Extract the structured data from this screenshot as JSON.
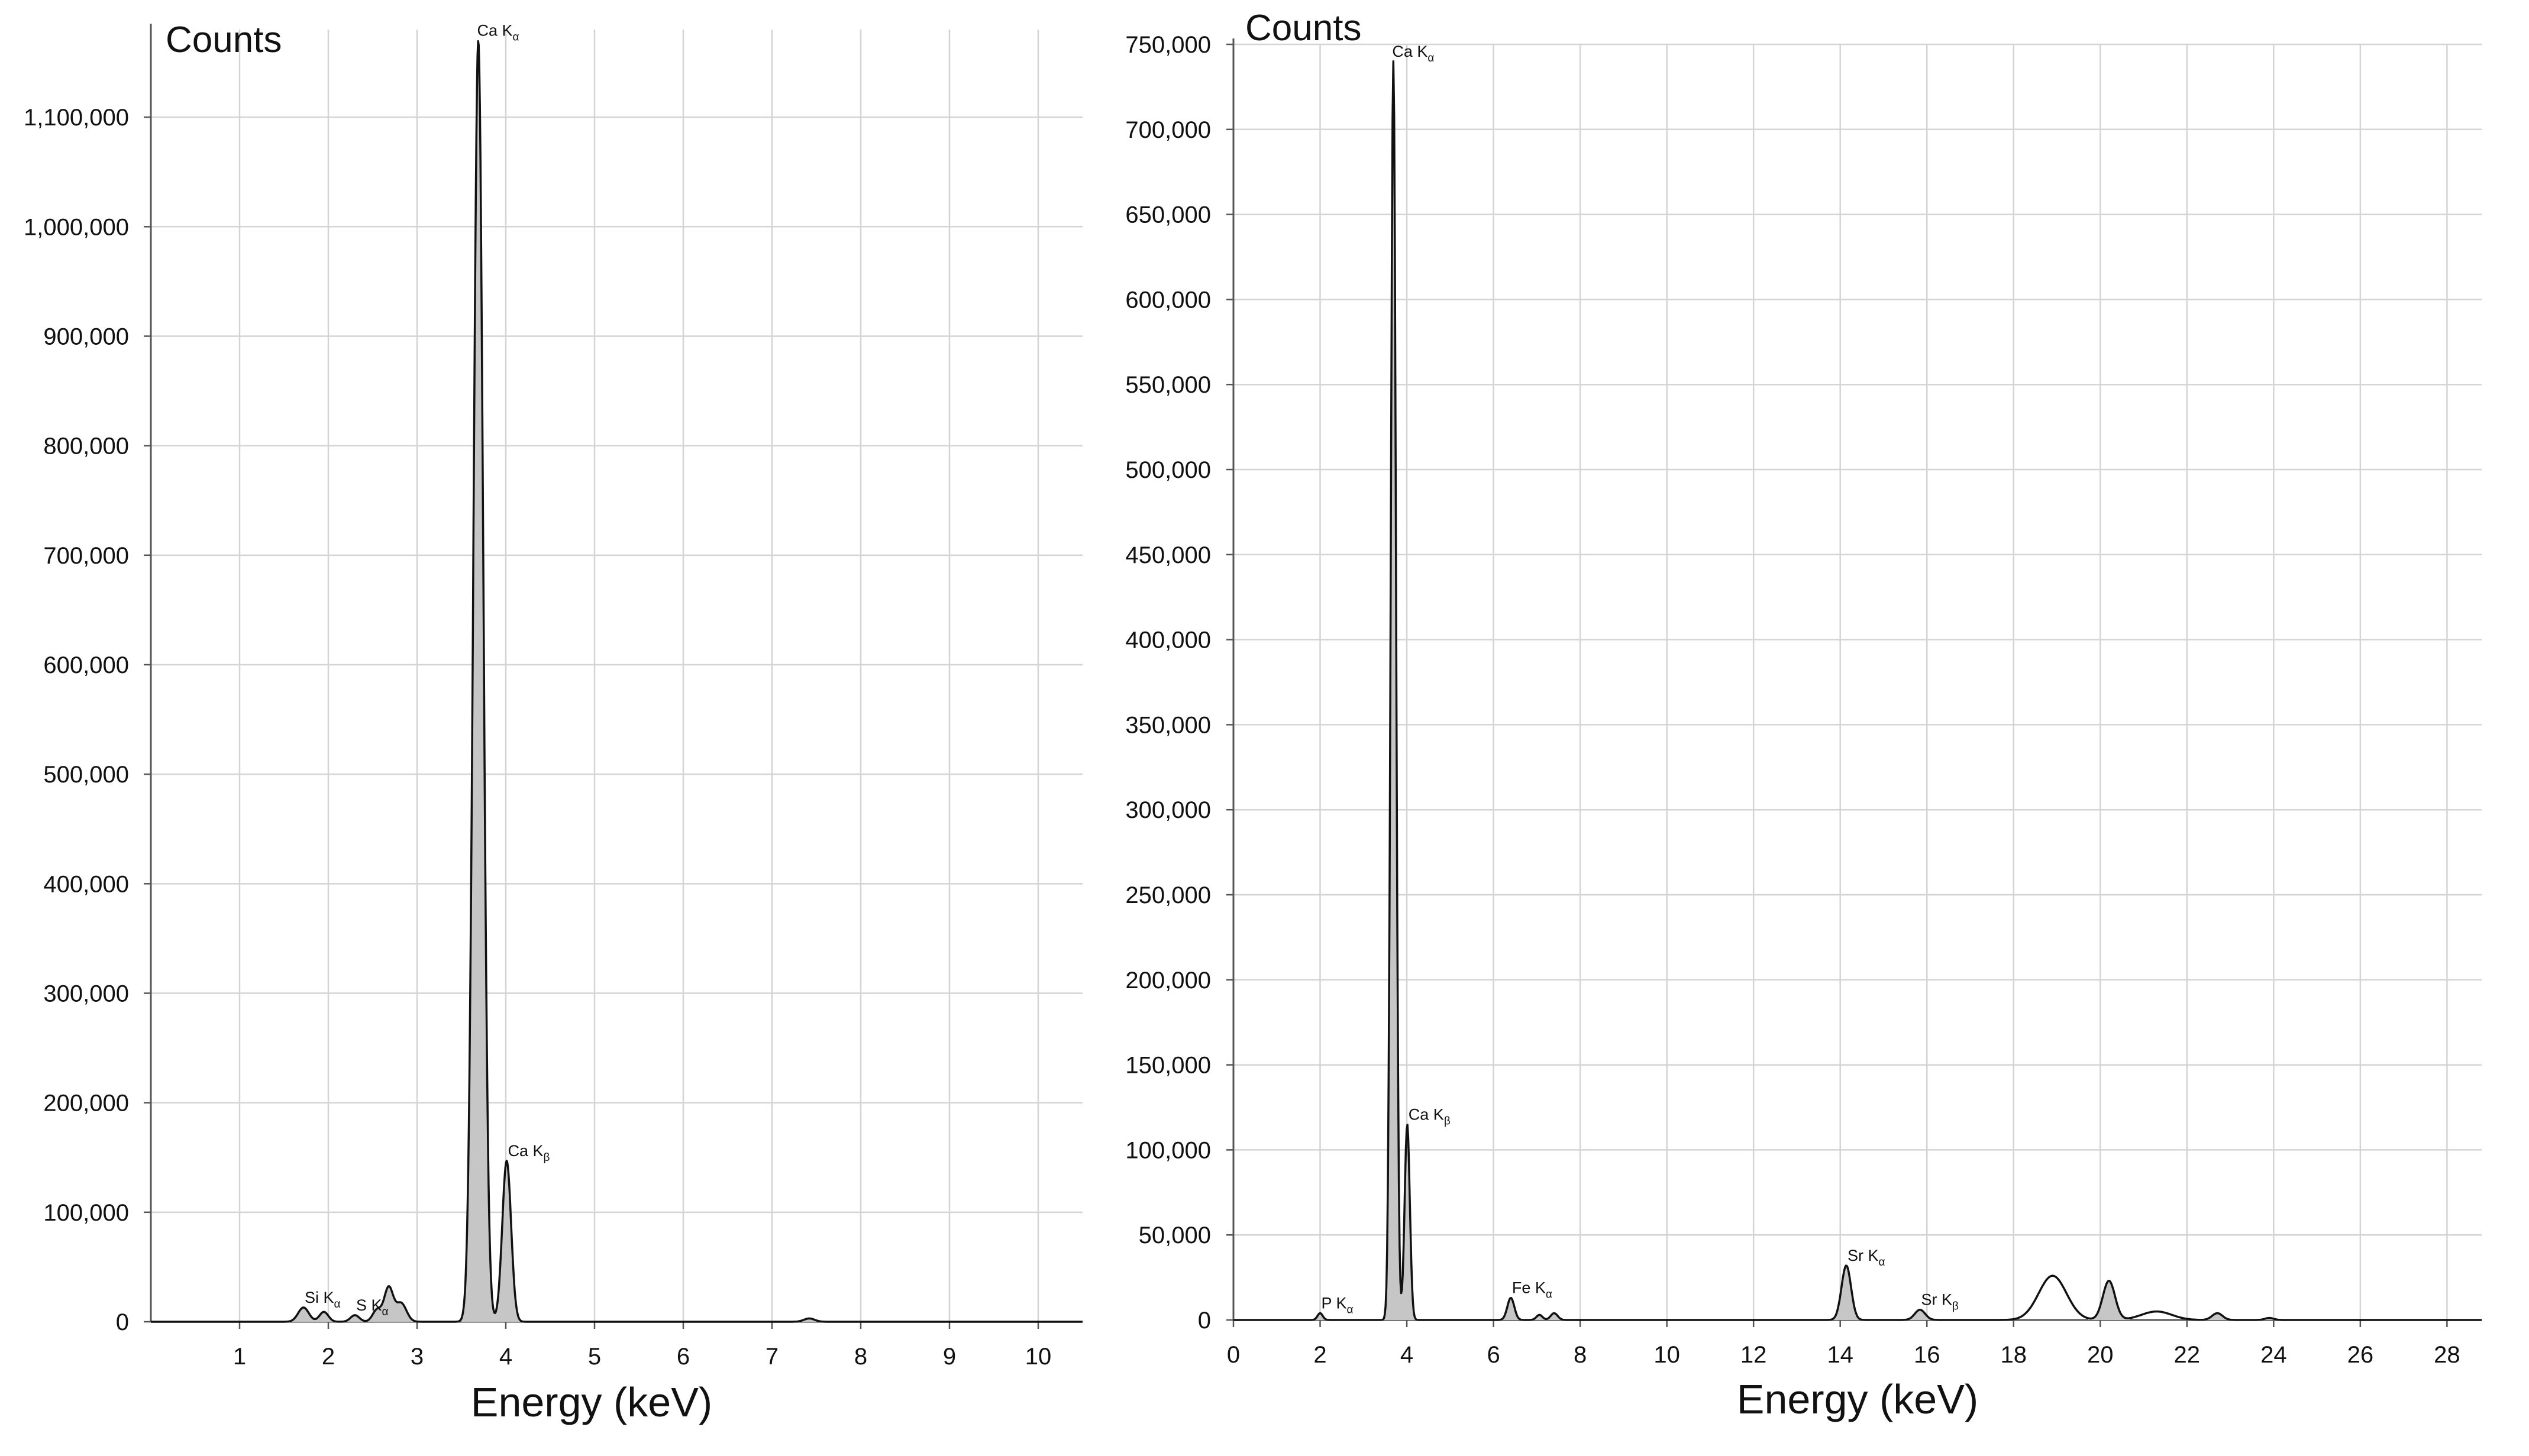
{
  "chart_data": [
    {
      "type": "area",
      "xlabel": "Energy (keV)",
      "ylabel": "Counts",
      "xlim": [
        0,
        10.5
      ],
      "ylim": [
        0,
        1180000
      ],
      "x_ticks": [
        "1",
        "2",
        "3",
        "4",
        "5",
        "6",
        "7",
        "8",
        "9",
        "10"
      ],
      "y_ticks": [
        "0",
        "100,000",
        "200,000",
        "300,000",
        "400,000",
        "500,000",
        "600,000",
        "700,000",
        "800,000",
        "900,000",
        "1,000,000",
        "1,100,000"
      ],
      "grid": true,
      "peaks": [
        {
          "x": 1.72,
          "y": 13000,
          "w": 0.06
        },
        {
          "x": 1.95,
          "y": 9000,
          "w": 0.05
        },
        {
          "x": 2.3,
          "y": 6000,
          "w": 0.05
        },
        {
          "x": 2.55,
          "y": 11000,
          "w": 0.05
        },
        {
          "x": 2.68,
          "y": 31000,
          "w": 0.05
        },
        {
          "x": 2.82,
          "y": 17000,
          "w": 0.06
        },
        {
          "x": 3.69,
          "y": 1170000,
          "w": 0.055
        },
        {
          "x": 4.01,
          "y": 147000,
          "w": 0.05
        },
        {
          "x": 7.42,
          "y": 3000,
          "w": 0.06
        }
      ],
      "annotations": [
        {
          "text": "Ca K",
          "sub": "α",
          "x": 3.69,
          "y": 1170000
        },
        {
          "text": "Ca K",
          "sub": "β",
          "x": 4.01,
          "y": 147000
        },
        {
          "text": "Si K",
          "sub": "α",
          "x": 1.72,
          "y": 13000
        },
        {
          "text": "S K",
          "sub": "α",
          "x": 2.3,
          "y": 6000
        }
      ]
    },
    {
      "type": "area",
      "xlabel": "Energy (keV)",
      "ylabel": "Counts",
      "xlim": [
        0,
        28.8
      ],
      "ylim": [
        0,
        750000
      ],
      "x_ticks": [
        "0",
        "2",
        "4",
        "6",
        "8",
        "10",
        "12",
        "14",
        "16",
        "18",
        "20",
        "22",
        "24",
        "26",
        "28"
      ],
      "y_ticks": [
        "0",
        "50,000",
        "100,000",
        "150,000",
        "200,000",
        "250,000",
        "300,000",
        "350,000",
        "400,000",
        "450,000",
        "500,000",
        "550,000",
        "600,000",
        "650,000",
        "700,000",
        "750,000"
      ],
      "grid": true,
      "peaks": [
        {
          "x": 2.0,
          "y": 4000,
          "w": 0.06
        },
        {
          "x": 3.69,
          "y": 740000,
          "w": 0.06
        },
        {
          "x": 4.01,
          "y": 115000,
          "w": 0.06
        },
        {
          "x": 6.4,
          "y": 13000,
          "w": 0.08
        },
        {
          "x": 7.06,
          "y": 3000,
          "w": 0.07
        },
        {
          "x": 7.4,
          "y": 4000,
          "w": 0.08
        },
        {
          "x": 14.14,
          "y": 32000,
          "w": 0.11
        },
        {
          "x": 15.84,
          "y": 6000,
          "w": 0.12
        },
        {
          "x": 18.9,
          "y": 26000,
          "w": 0.32,
          "filled": false
        },
        {
          "x": 20.2,
          "y": 23000,
          "w": 0.14
        },
        {
          "x": 21.3,
          "y": 5000,
          "w": 0.35,
          "filled": false
        },
        {
          "x": 22.7,
          "y": 4000,
          "w": 0.12
        },
        {
          "x": 23.9,
          "y": 1200,
          "w": 0.1
        }
      ],
      "annotations": [
        {
          "text": "Ca K",
          "sub": "α",
          "x": 3.69,
          "y": 740000
        },
        {
          "text": "Ca K",
          "sub": "β",
          "x": 4.01,
          "y": 115000
        },
        {
          "text": "P K",
          "sub": "α",
          "x": 2.0,
          "y": 4000
        },
        {
          "text": "Fe K",
          "sub": "α",
          "x": 6.4,
          "y": 13000
        },
        {
          "text": "Sr K",
          "sub": "α",
          "x": 14.14,
          "y": 32000
        },
        {
          "text": "Sr K",
          "sub": "β",
          "x": 15.84,
          "y": 6000
        }
      ]
    }
  ]
}
